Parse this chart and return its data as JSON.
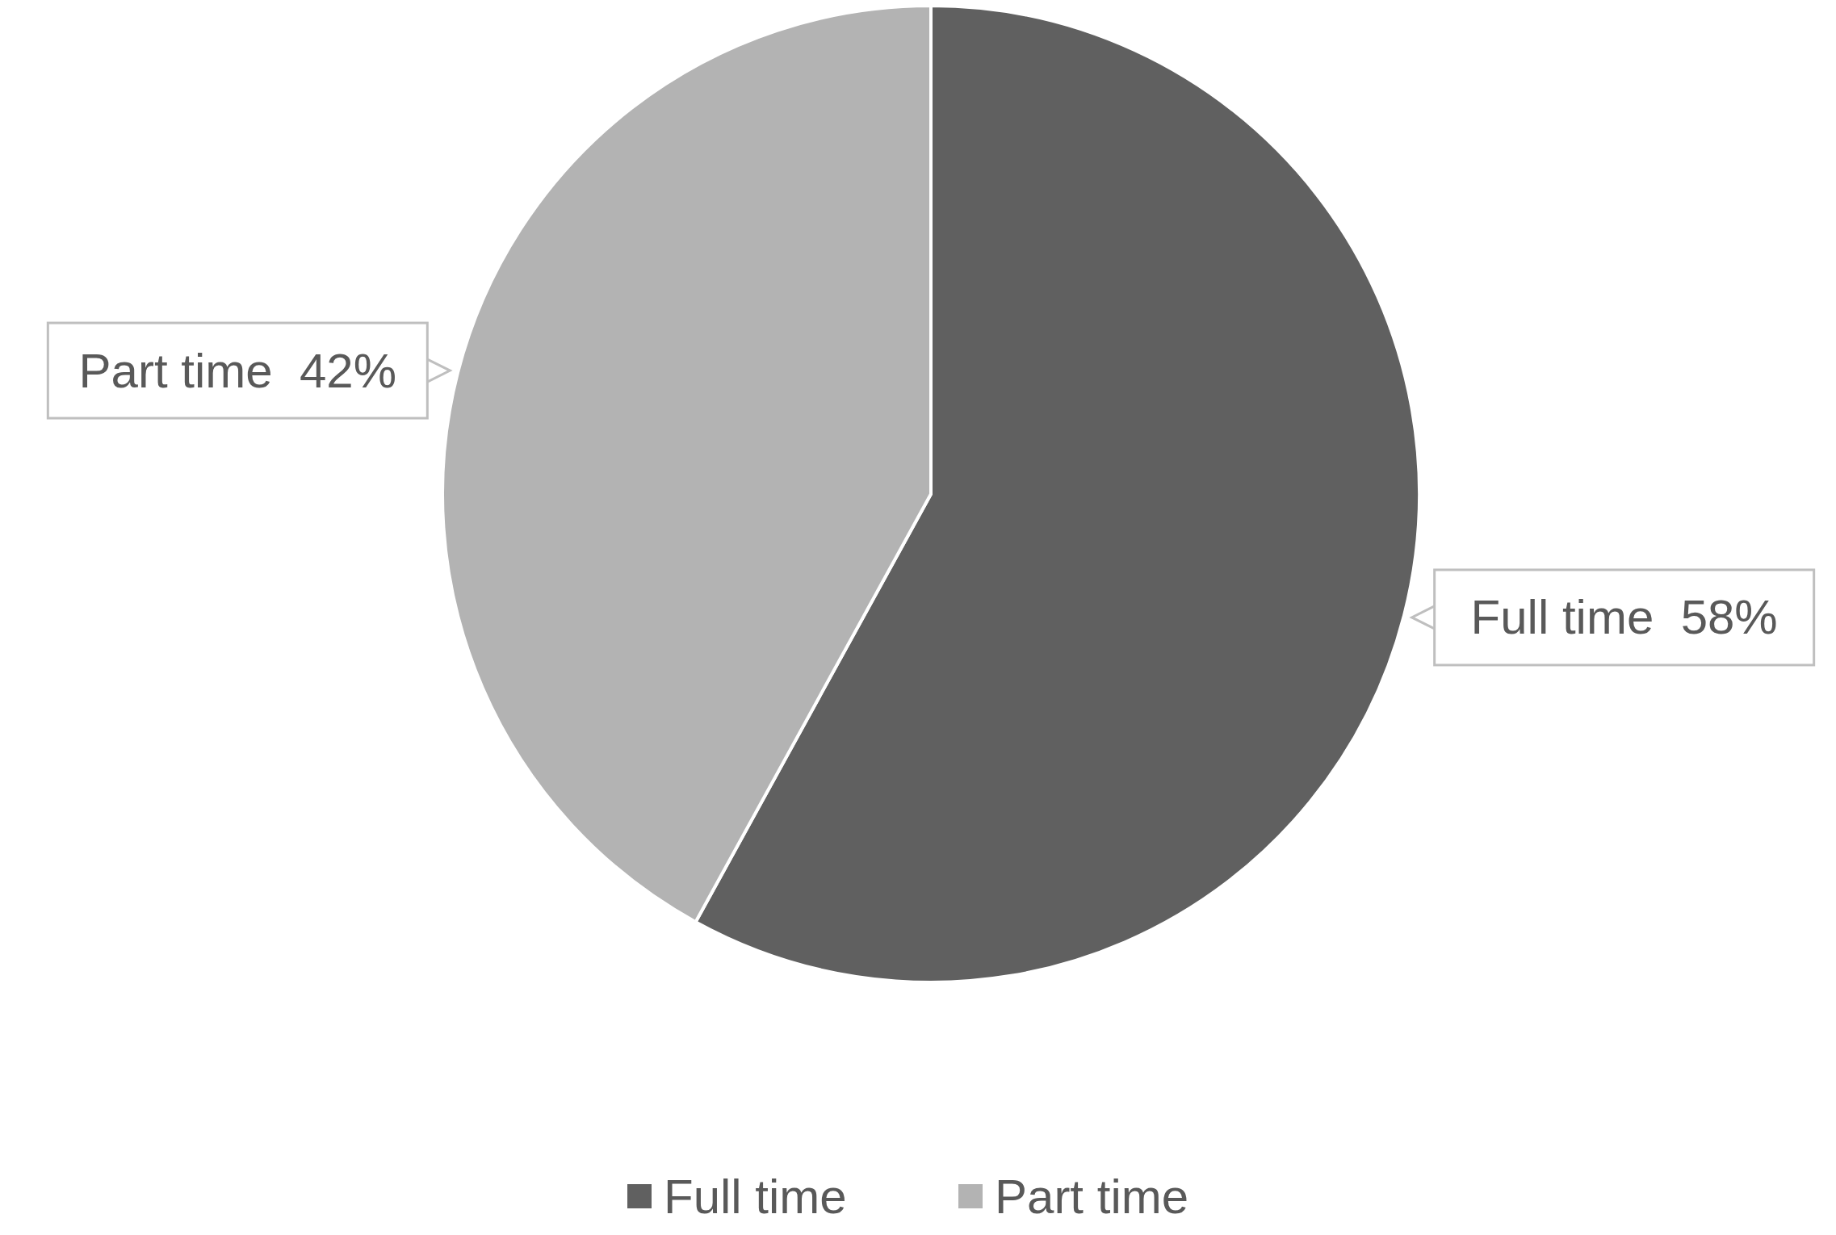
{
  "chart_data": {
    "type": "pie",
    "categories": [
      "Full time",
      "Part time"
    ],
    "values": [
      58,
      42
    ],
    "colors": [
      "#606060",
      "#b3b3b3"
    ],
    "value_labels": [
      "58%",
      "42%"
    ],
    "legend": "bottom"
  }
}
